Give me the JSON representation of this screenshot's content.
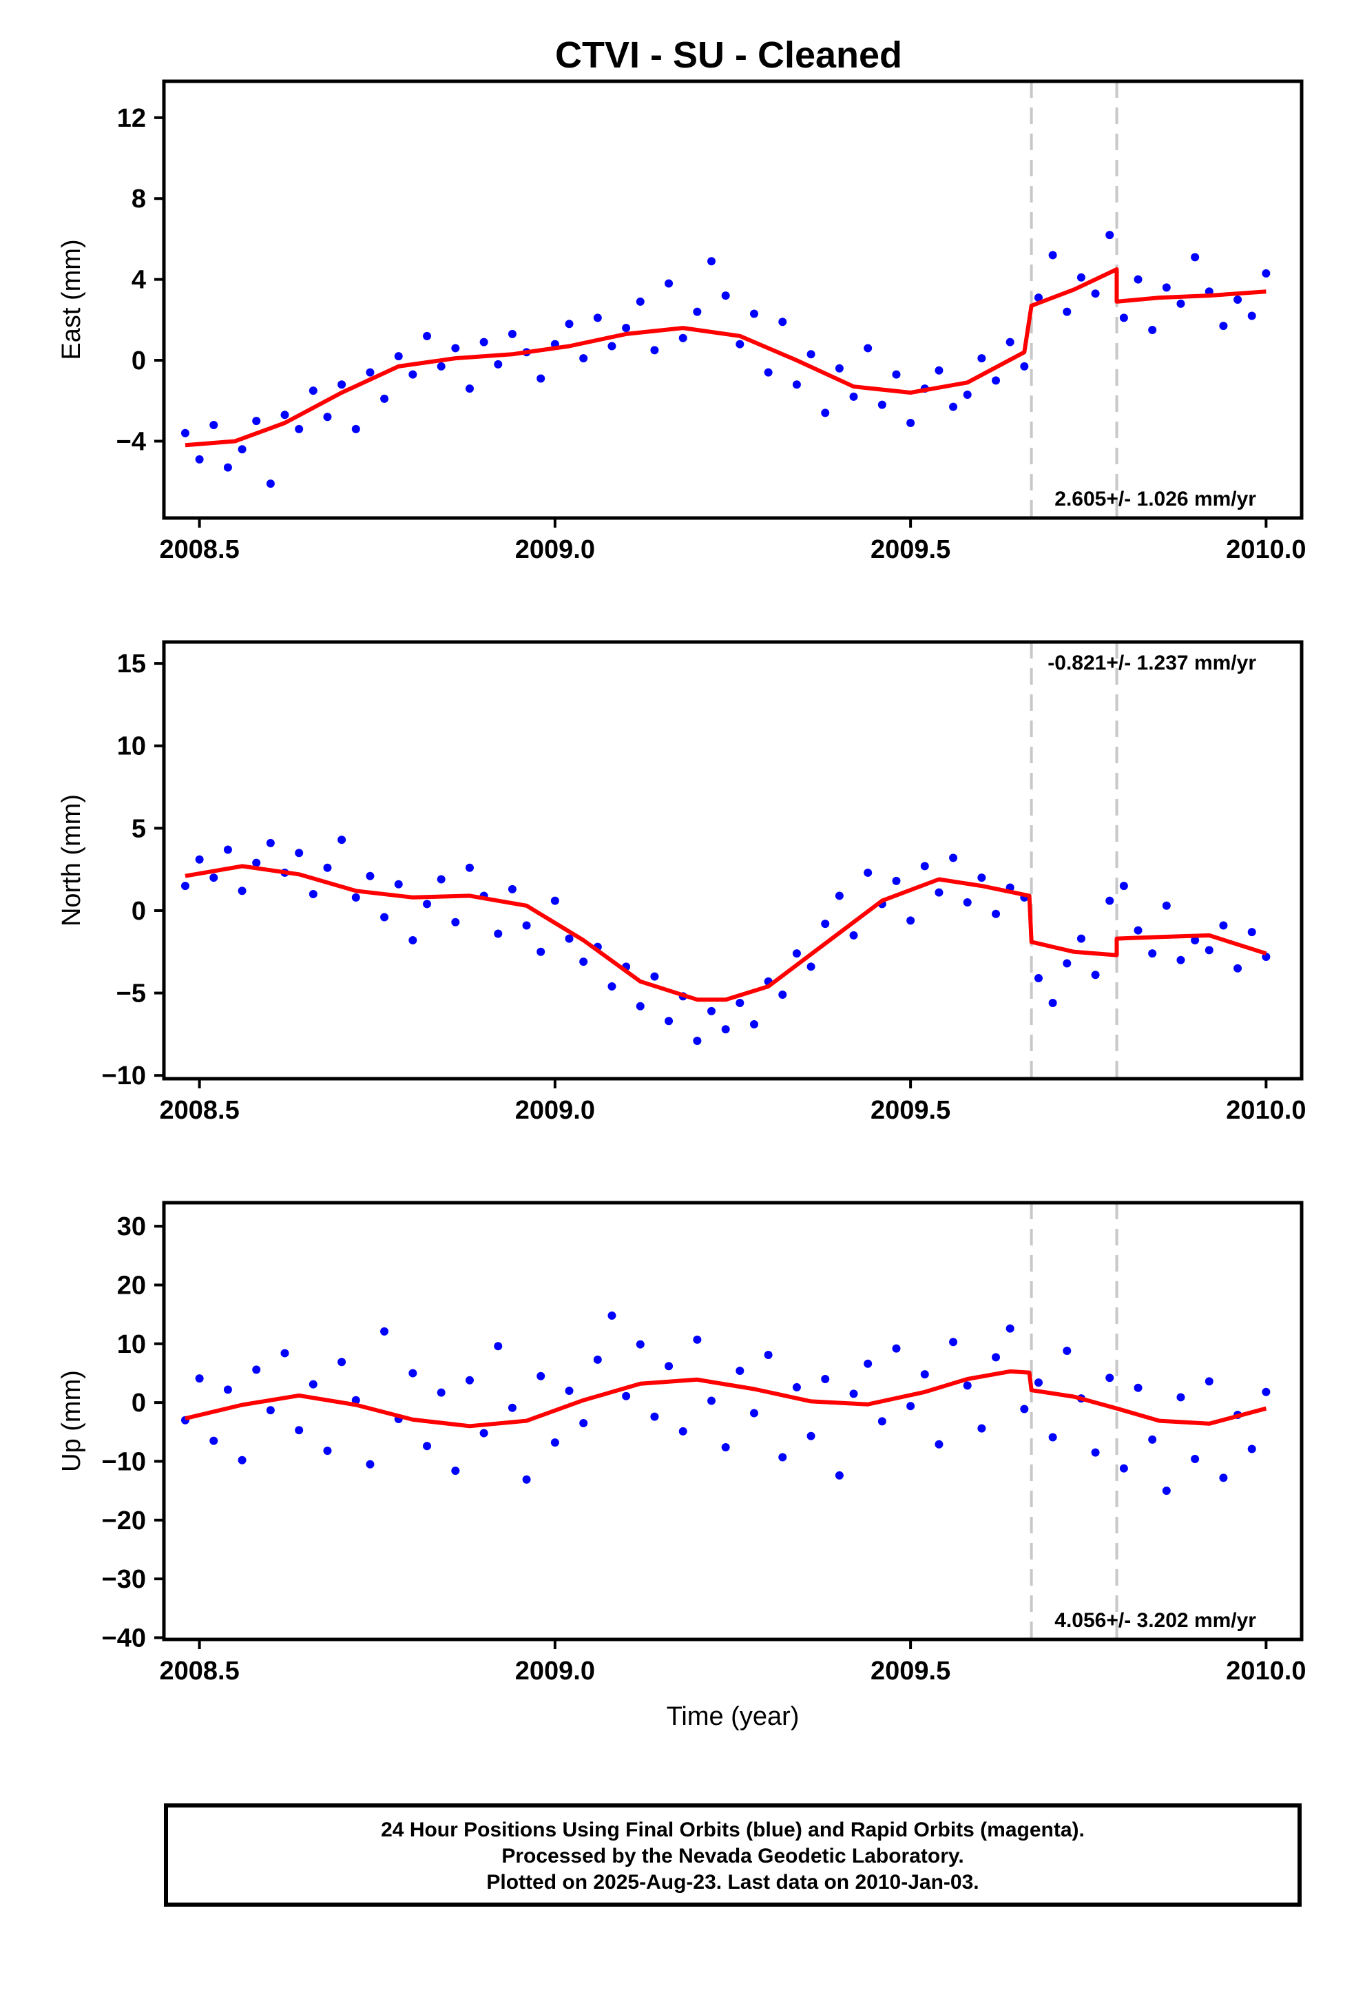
{
  "title": "CTVI  - SU - Cleaned",
  "footer": {
    "line1": "24 Hour Positions Using Final Orbits (blue) and Rapid Orbits (magenta).",
    "line2": "Processed by the Nevada Geodetic Laboratory.",
    "line3": "Plotted on 2025-Aug-23. Last data on 2010-Jan-03."
  },
  "colors": {
    "points": "#0000ff",
    "model": "#ff0000",
    "breaks": "#c8c8c8",
    "axes": "#000000"
  },
  "chart_data": [
    {
      "type": "scatter",
      "ylabel": "East (mm)",
      "xlabel": "",
      "xlim": [
        2008.45,
        2010.05
      ],
      "ylim": [
        -7.8,
        13.8
      ],
      "xticks": [
        "2008.5",
        "2009.0",
        "2009.5",
        "2010.0"
      ],
      "yticks": [
        "−4",
        "0",
        "4",
        "8",
        "12"
      ],
      "rate_label": "2.605+/- 1.026 mm/yr",
      "rate_position": "bottom-right",
      "breaks": [
        2009.67,
        2009.79
      ],
      "series": [
        {
          "role": "positions",
          "x": [
            2008.48,
            2008.5,
            2008.52,
            2008.54,
            2008.56,
            2008.58,
            2008.6,
            2008.62,
            2008.64,
            2008.66,
            2008.68,
            2008.7,
            2008.72,
            2008.74,
            2008.76,
            2008.78,
            2008.8,
            2008.82,
            2008.84,
            2008.86,
            2008.88,
            2008.9,
            2008.92,
            2008.94,
            2008.96,
            2008.98,
            2009.0,
            2009.02,
            2009.04,
            2009.06,
            2009.08,
            2009.1,
            2009.12,
            2009.14,
            2009.16,
            2009.18,
            2009.2,
            2009.22,
            2009.24,
            2009.26,
            2009.28,
            2009.3,
            2009.32,
            2009.34,
            2009.36,
            2009.38,
            2009.4,
            2009.42,
            2009.44,
            2009.46,
            2009.48,
            2009.5,
            2009.52,
            2009.54,
            2009.56,
            2009.58,
            2009.6,
            2009.62,
            2009.64,
            2009.66,
            2009.68,
            2009.7,
            2009.72,
            2009.74,
            2009.76,
            2009.78,
            2009.8,
            2009.82,
            2009.84,
            2009.86,
            2009.88,
            2009.9,
            2009.92,
            2009.94,
            2009.96,
            2009.98,
            2010.0
          ],
          "y": [
            -3.6,
            -4.9,
            -3.2,
            -5.3,
            -4.4,
            -3.0,
            -6.1,
            -2.7,
            -3.4,
            -1.5,
            -2.8,
            -1.2,
            -3.4,
            -0.6,
            -1.9,
            0.2,
            -0.7,
            1.2,
            -0.3,
            0.6,
            -1.4,
            0.9,
            -0.2,
            1.3,
            0.4,
            -0.9,
            0.8,
            1.8,
            0.1,
            2.1,
            0.7,
            1.6,
            2.9,
            0.5,
            3.8,
            1.1,
            2.4,
            4.9,
            3.2,
            0.8,
            2.3,
            -0.6,
            1.9,
            -1.2,
            0.3,
            -2.6,
            -0.4,
            -1.8,
            0.6,
            -2.2,
            -0.7,
            -3.1,
            -1.4,
            -0.5,
            -2.3,
            -1.7,
            0.1,
            -1.0,
            0.9,
            -0.3,
            3.1,
            5.2,
            2.4,
            4.1,
            3.3,
            6.2,
            2.1,
            4.0,
            1.5,
            3.6,
            2.8,
            5.1,
            3.4,
            1.7,
            3.0,
            2.2,
            4.3
          ]
        },
        {
          "role": "model",
          "x": [
            2008.48,
            2008.55,
            2008.62,
            2008.7,
            2008.78,
            2008.86,
            2008.94,
            2009.02,
            2009.1,
            2009.18,
            2009.26,
            2009.34,
            2009.42,
            2009.5,
            2009.58,
            2009.66,
            2009.67,
            2009.73,
            2009.79,
            2009.79,
            2009.85,
            2009.92,
            2010.0
          ],
          "y": [
            -4.2,
            -4.0,
            -3.1,
            -1.6,
            -0.3,
            0.1,
            0.3,
            0.7,
            1.3,
            1.6,
            1.2,
            0.0,
            -1.3,
            -1.6,
            -1.1,
            0.4,
            2.7,
            3.5,
            4.5,
            2.9,
            3.1,
            3.2,
            3.4
          ]
        }
      ]
    },
    {
      "type": "scatter",
      "ylabel": "North (mm)",
      "xlabel": "",
      "xlim": [
        2008.45,
        2010.05
      ],
      "ylim": [
        -10.2,
        16.3
      ],
      "xticks": [
        "2008.5",
        "2009.0",
        "2009.5",
        "2010.0"
      ],
      "yticks": [
        "−10",
        "−5",
        "0",
        "5",
        "10",
        "15"
      ],
      "rate_label": "-0.821+/- 1.237 mm/yr",
      "rate_position": "top-right",
      "breaks": [
        2009.67,
        2009.79
      ],
      "series": [
        {
          "role": "positions",
          "x": [
            2008.48,
            2008.5,
            2008.52,
            2008.54,
            2008.56,
            2008.58,
            2008.6,
            2008.62,
            2008.64,
            2008.66,
            2008.68,
            2008.7,
            2008.72,
            2008.74,
            2008.76,
            2008.78,
            2008.8,
            2008.82,
            2008.84,
            2008.86,
            2008.88,
            2008.9,
            2008.92,
            2008.94,
            2008.96,
            2008.98,
            2009.0,
            2009.02,
            2009.04,
            2009.06,
            2009.08,
            2009.1,
            2009.12,
            2009.14,
            2009.16,
            2009.18,
            2009.2,
            2009.22,
            2009.24,
            2009.26,
            2009.28,
            2009.3,
            2009.32,
            2009.34,
            2009.36,
            2009.38,
            2009.4,
            2009.42,
            2009.44,
            2009.46,
            2009.48,
            2009.5,
            2009.52,
            2009.54,
            2009.56,
            2009.58,
            2009.6,
            2009.62,
            2009.64,
            2009.66,
            2009.68,
            2009.7,
            2009.72,
            2009.74,
            2009.76,
            2009.78,
            2009.8,
            2009.82,
            2009.84,
            2009.86,
            2009.88,
            2009.9,
            2009.92,
            2009.94,
            2009.96,
            2009.98,
            2010.0
          ],
          "y": [
            1.5,
            3.1,
            2.0,
            3.7,
            1.2,
            2.9,
            4.1,
            2.3,
            3.5,
            1.0,
            2.6,
            4.3,
            0.8,
            2.1,
            -0.4,
            1.6,
            -1.8,
            0.4,
            1.9,
            -0.7,
            2.6,
            0.9,
            -1.4,
            1.3,
            -0.9,
            -2.5,
            0.6,
            -1.7,
            -3.1,
            -2.2,
            -4.6,
            -3.4,
            -5.8,
            -4.0,
            -6.7,
            -5.2,
            -7.9,
            -6.1,
            -7.2,
            -5.6,
            -6.9,
            -4.3,
            -5.1,
            -2.6,
            -3.4,
            -0.8,
            0.9,
            -1.5,
            2.3,
            0.4,
            1.8,
            -0.6,
            2.7,
            1.1,
            3.2,
            0.5,
            2.0,
            -0.2,
            1.4,
            0.8,
            -4.1,
            -5.6,
            -3.2,
            -1.7,
            -3.9,
            0.6,
            1.5,
            -1.2,
            -2.6,
            0.3,
            -3.0,
            -1.8,
            -2.4,
            -0.9,
            -3.5,
            -1.3,
            -2.8
          ]
        },
        {
          "role": "model",
          "x": [
            2008.48,
            2008.56,
            2008.64,
            2008.72,
            2008.8,
            2008.88,
            2008.96,
            2009.04,
            2009.12,
            2009.2,
            2009.24,
            2009.3,
            2009.38,
            2009.46,
            2009.54,
            2009.6,
            2009.667,
            2009.67,
            2009.73,
            2009.79,
            2009.79,
            2009.85,
            2009.92,
            2010.0
          ],
          "y": [
            2.1,
            2.7,
            2.2,
            1.2,
            0.8,
            0.9,
            0.3,
            -1.8,
            -4.3,
            -5.4,
            -5.4,
            -4.6,
            -2.0,
            0.6,
            1.9,
            1.5,
            0.9,
            -1.9,
            -2.5,
            -2.7,
            -1.7,
            -1.6,
            -1.5,
            -2.6
          ]
        }
      ]
    },
    {
      "type": "scatter",
      "ylabel": "Up (mm)",
      "xlabel": "Time (year)",
      "xlim": [
        2008.45,
        2010.05
      ],
      "ylim": [
        -40.3,
        34.0
      ],
      "xticks": [
        "2008.5",
        "2009.0",
        "2009.5",
        "2010.0"
      ],
      "yticks": [
        "−40",
        "−30",
        "−20",
        "−10",
        "0",
        "10",
        "20",
        "30"
      ],
      "rate_label": "4.056+/- 3.202 mm/yr",
      "rate_position": "bottom-right",
      "breaks": [
        2009.67,
        2009.79
      ],
      "series": [
        {
          "role": "positions",
          "x": [
            2008.48,
            2008.5,
            2008.52,
            2008.54,
            2008.56,
            2008.58,
            2008.6,
            2008.62,
            2008.64,
            2008.66,
            2008.68,
            2008.7,
            2008.72,
            2008.74,
            2008.76,
            2008.78,
            2008.8,
            2008.82,
            2008.84,
            2008.86,
            2008.88,
            2008.9,
            2008.92,
            2008.94,
            2008.96,
            2008.98,
            2009.0,
            2009.02,
            2009.04,
            2009.06,
            2009.08,
            2009.1,
            2009.12,
            2009.14,
            2009.16,
            2009.18,
            2009.2,
            2009.22,
            2009.24,
            2009.26,
            2009.28,
            2009.3,
            2009.32,
            2009.34,
            2009.36,
            2009.38,
            2009.4,
            2009.42,
            2009.44,
            2009.46,
            2009.48,
            2009.5,
            2009.52,
            2009.54,
            2009.56,
            2009.58,
            2009.6,
            2009.62,
            2009.64,
            2009.66,
            2009.68,
            2009.7,
            2009.72,
            2009.74,
            2009.76,
            2009.78,
            2009.8,
            2009.82,
            2009.84,
            2009.86,
            2009.88,
            2009.9,
            2009.92,
            2009.94,
            2009.96,
            2009.98,
            2010.0
          ],
          "y": [
            -3.0,
            4.1,
            -6.5,
            2.2,
            -9.8,
            5.6,
            -1.3,
            8.4,
            -4.7,
            3.1,
            -8.2,
            6.9,
            0.4,
            -10.5,
            12.1,
            -2.8,
            5.0,
            -7.4,
            1.7,
            -11.6,
            3.8,
            -5.2,
            9.6,
            -0.9,
            -13.1,
            4.5,
            -6.8,
            2.0,
            -3.5,
            7.3,
            14.8,
            1.1,
            9.9,
            -2.4,
            6.2,
            -4.9,
            10.7,
            0.3,
            -7.6,
            5.4,
            -1.8,
            8.1,
            -9.3,
            2.6,
            -5.7,
            4.0,
            -12.4,
            1.5,
            6.6,
            -3.2,
            9.2,
            -0.6,
            4.8,
            -7.1,
            10.3,
            2.9,
            -4.4,
            7.7,
            12.6,
            -1.1,
            3.4,
            -5.9,
            8.8,
            0.7,
            -8.5,
            4.2,
            -11.2,
            2.5,
            -6.3,
            -15.0,
            0.9,
            -9.6,
            3.6,
            -12.8,
            -2.1,
            -7.9,
            1.8
          ]
        },
        {
          "role": "model",
          "x": [
            2008.48,
            2008.56,
            2008.64,
            2008.72,
            2008.8,
            2008.88,
            2008.96,
            2009.04,
            2009.12,
            2009.2,
            2009.28,
            2009.36,
            2009.44,
            2009.52,
            2009.58,
            2009.64,
            2009.667,
            2009.67,
            2009.73,
            2009.79,
            2009.85,
            2009.92,
            2010.0
          ],
          "y": [
            -2.7,
            -0.4,
            1.2,
            -0.4,
            -2.9,
            -4.0,
            -3.1,
            0.4,
            3.2,
            3.9,
            2.3,
            0.2,
            -0.3,
            1.8,
            4.0,
            5.3,
            5.1,
            2.1,
            1.0,
            -1.0,
            -3.1,
            -3.6,
            -1.0
          ]
        }
      ]
    }
  ]
}
